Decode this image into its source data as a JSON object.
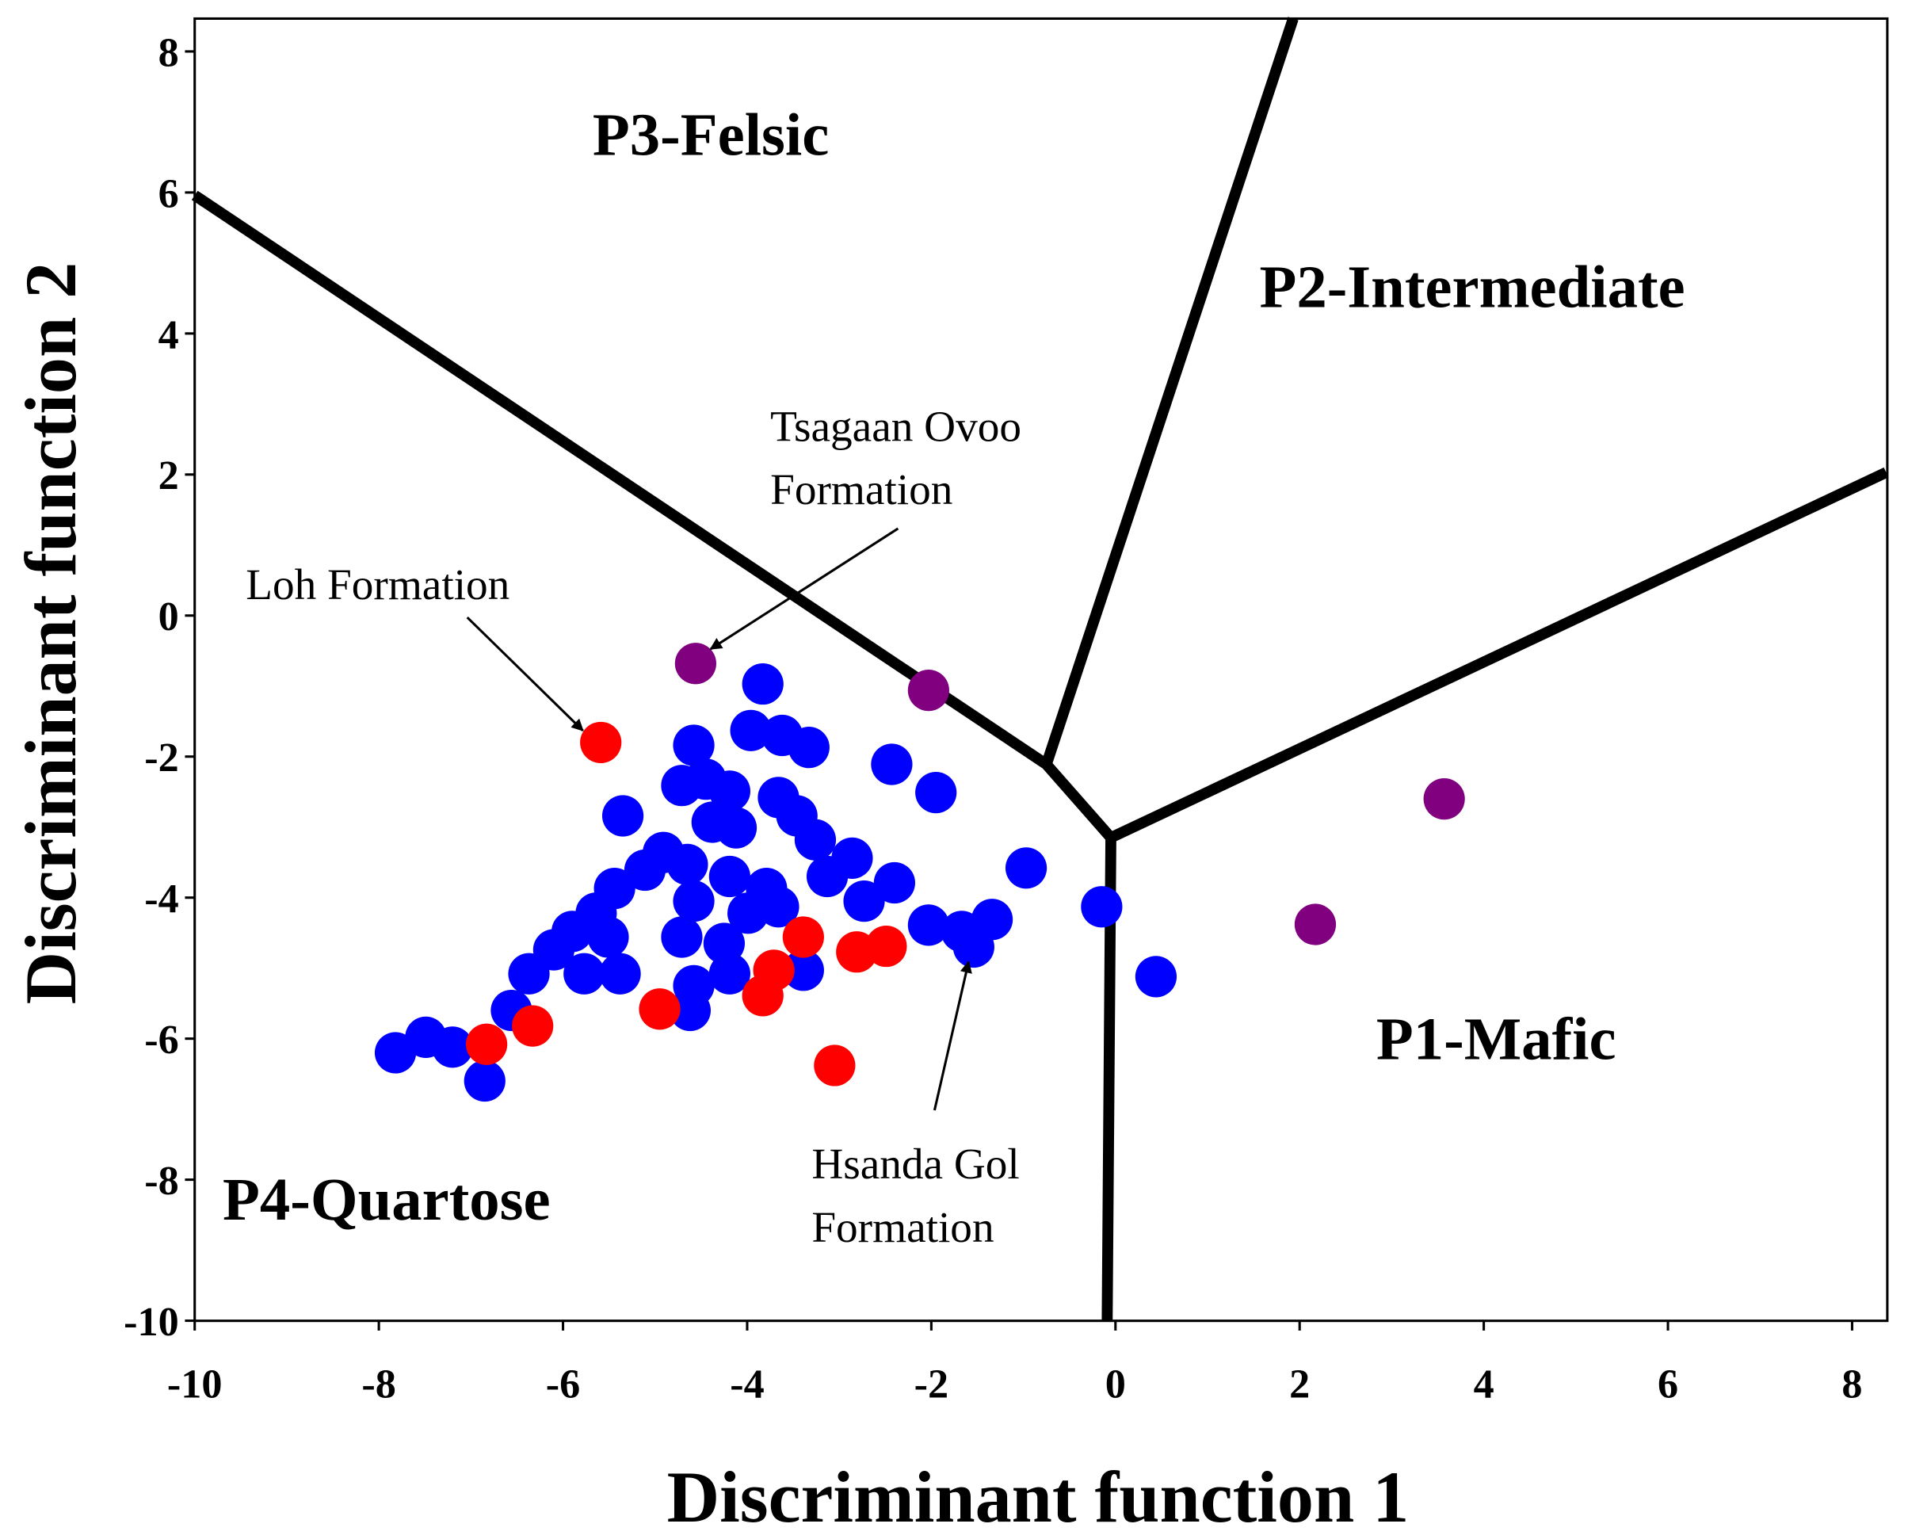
{
  "chart_data": {
    "type": "scatter",
    "title": "",
    "xlabel": "Discriminant function 1",
    "ylabel": "Discriminant function 2",
    "xlim": [
      -10,
      8.5
    ],
    "ylim": [
      -10,
      8.5
    ],
    "xticks": [
      -10,
      -8,
      -6,
      -4,
      -2,
      0,
      2,
      4,
      6,
      8
    ],
    "yticks": [
      8,
      6,
      4,
      2,
      0,
      -2,
      -4,
      -6,
      -8,
      -10
    ],
    "grid": false,
    "legend": "none",
    "series": [
      {
        "color": "#0000ff",
        "points": [
          [
            -3.83,
            -0.97
          ],
          [
            -4.58,
            -1.84
          ],
          [
            -3.96,
            -1.63
          ],
          [
            -3.62,
            -1.7
          ],
          [
            -3.33,
            -1.87
          ],
          [
            -2.43,
            -2.11
          ],
          [
            -1.95,
            -2.51
          ],
          [
            -5.35,
            -2.84
          ],
          [
            -4.71,
            -2.41
          ],
          [
            -4.45,
            -2.32
          ],
          [
            -4.19,
            -2.49
          ],
          [
            -4.38,
            -2.93
          ],
          [
            -4.12,
            -3.01
          ],
          [
            -3.66,
            -2.58
          ],
          [
            -3.46,
            -2.84
          ],
          [
            -3.26,
            -3.18
          ],
          [
            -2.86,
            -3.44
          ],
          [
            -2.4,
            -3.79
          ],
          [
            -2.73,
            -4.05
          ],
          [
            -3.13,
            -3.7
          ],
          [
            -3.79,
            -3.87
          ],
          [
            -4.19,
            -3.7
          ],
          [
            -4.65,
            -3.53
          ],
          [
            -4.91,
            -3.36
          ],
          [
            -5.11,
            -3.61
          ],
          [
            -5.44,
            -3.87
          ],
          [
            -5.64,
            -4.22
          ],
          [
            -5.9,
            -4.48
          ],
          [
            -6.1,
            -4.74
          ],
          [
            -6.37,
            -5.08
          ],
          [
            -6.56,
            -5.6
          ],
          [
            -5.51,
            -4.56
          ],
          [
            -5.38,
            -5.08
          ],
          [
            -5.77,
            -5.08
          ],
          [
            -4.71,
            -4.56
          ],
          [
            -4.25,
            -4.65
          ],
          [
            -3.99,
            -4.22
          ],
          [
            -3.66,
            -4.13
          ],
          [
            -4.19,
            -5.08
          ],
          [
            -4.58,
            -5.25
          ],
          [
            -4.62,
            -5.6
          ],
          [
            -3.39,
            -5.03
          ],
          [
            -2.03,
            -4.39
          ],
          [
            -1.67,
            -4.48
          ],
          [
            -1.34,
            -4.31
          ],
          [
            -1.54,
            -4.7
          ],
          [
            -0.97,
            -3.58
          ],
          [
            -0.15,
            -4.13
          ],
          [
            0.44,
            -5.12
          ],
          [
            -7.82,
            -6.2
          ],
          [
            -7.49,
            -5.98
          ],
          [
            -7.2,
            -6.12
          ],
          [
            -6.85,
            -6.6
          ],
          [
            -4.58,
            -4.05
          ]
        ]
      },
      {
        "color": "#ff0000",
        "points": [
          [
            -5.59,
            -1.8
          ],
          [
            -6.83,
            -6.08
          ],
          [
            -6.33,
            -5.82
          ],
          [
            -4.95,
            -5.58
          ],
          [
            -3.83,
            -5.39
          ],
          [
            -3.71,
            -5.03
          ],
          [
            -3.39,
            -4.56
          ],
          [
            -2.81,
            -4.77
          ],
          [
            -2.49,
            -4.69
          ],
          [
            -3.05,
            -6.38
          ]
        ]
      },
      {
        "color": "#800080",
        "points": [
          [
            -4.56,
            -0.68
          ],
          [
            -2.03,
            -1.06
          ],
          [
            3.57,
            -2.6
          ],
          [
            2.17,
            -4.38
          ]
        ]
      }
    ],
    "boundaries": [
      [
        [
          -10,
          5.96
        ],
        [
          -0.75,
          -2.11
        ],
        [
          -0.05,
          -3.15
        ],
        [
          8.37,
          2.03
        ]
      ],
      [
        [
          -0.75,
          -2.11
        ],
        [
          1.93,
          8.5
        ]
      ],
      [
        [
          -0.05,
          -3.15
        ],
        [
          -0.09,
          -10
        ]
      ]
    ],
    "regions": [
      "P3-Felsic",
      "P2-Intermediate",
      "P1-Mafic",
      "P4-Quartose"
    ],
    "annotations": [
      {
        "lines": [
          "Tsagaan Ovoo",
          "Formation"
        ]
      },
      {
        "lines": [
          "Loh Formation"
        ]
      },
      {
        "lines": [
          "Hsanda Gol",
          "Formation"
        ]
      }
    ]
  }
}
